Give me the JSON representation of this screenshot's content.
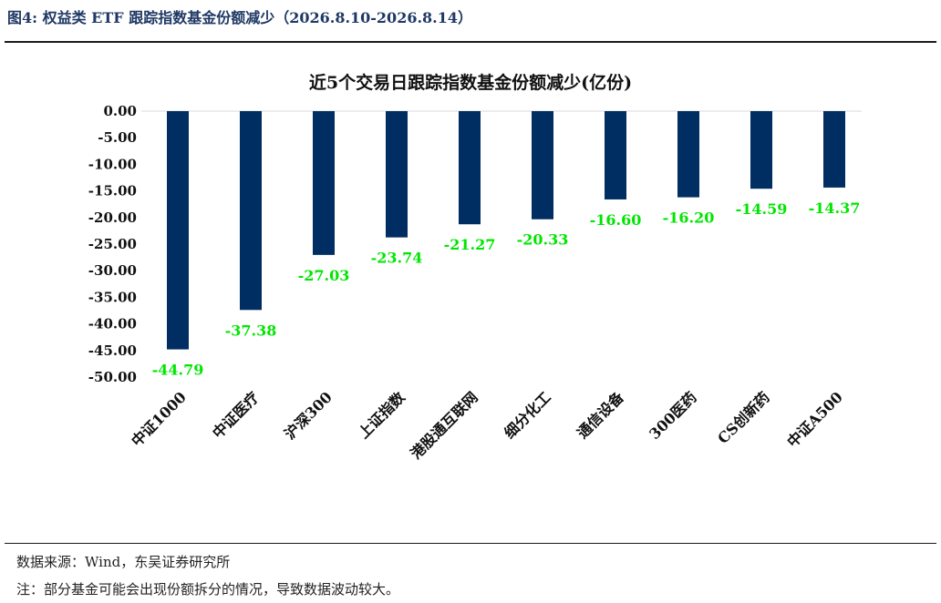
{
  "figure": {
    "title": "图4:  权益类 ETF 跟踪指数基金份额减少（2026.8.10-2026.8.14）"
  },
  "source_note": "数据来源：Wind，东吴证券研究所",
  "foot_note": "注：部分基金可能会出现份额拆分的情况，导致数据波动较大。",
  "colors": {
    "bar": "#002d62",
    "data_label": "#00e600",
    "text": "#111111",
    "title": "#1f3864"
  },
  "chart_data": {
    "type": "bar",
    "title": "近5个交易日跟踪指数基金份额减少(亿份)",
    "categories": [
      "中证1000",
      "中证医疗",
      "沪深300",
      "上证指数",
      "港股通互联网",
      "细分化工",
      "通信设备",
      "300医药",
      "CS创新药",
      "中证A500"
    ],
    "values": [
      -44.79,
      -37.38,
      -27.03,
      -23.74,
      -21.27,
      -20.33,
      -16.6,
      -16.2,
      -14.59,
      -14.37
    ],
    "value_labels": [
      "-44.79",
      "-37.38",
      "-27.03",
      "-23.74",
      "-21.27",
      "-20.33",
      "-16.60",
      "-16.20",
      "-14.59",
      "-14.37"
    ],
    "ylim": [
      -50,
      0
    ],
    "yticks": [
      "0.00",
      "-5.00",
      "-10.00",
      "-15.00",
      "-20.00",
      "-25.00",
      "-30.00",
      "-35.00",
      "-40.00",
      "-45.00",
      "-50.00"
    ],
    "ytick_values": [
      0,
      -5,
      -10,
      -15,
      -20,
      -25,
      -30,
      -35,
      -40,
      -45,
      -50
    ],
    "xlabel": "",
    "ylabel": "",
    "grid": false,
    "legend": false
  }
}
